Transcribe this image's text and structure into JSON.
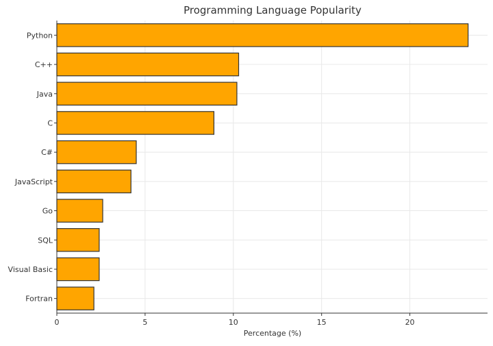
{
  "chart_data": {
    "type": "bar",
    "orientation": "horizontal",
    "title": "Programming Language Popularity",
    "xlabel": "Percentage (%)",
    "ylabel": "",
    "categories": [
      "Python",
      "C++",
      "Java",
      "C",
      "C#",
      "JavaScript",
      "Go",
      "SQL",
      "Visual Basic",
      "Fortran"
    ],
    "values": [
      23.3,
      10.3,
      10.2,
      8.9,
      4.5,
      4.2,
      2.6,
      2.4,
      2.4,
      2.1
    ],
    "xlim": [
      0,
      24.4
    ],
    "xticks": [
      0,
      5,
      10,
      15,
      20
    ],
    "grid": true,
    "bar_color": "#ffa500",
    "edge_color": "#333333"
  }
}
